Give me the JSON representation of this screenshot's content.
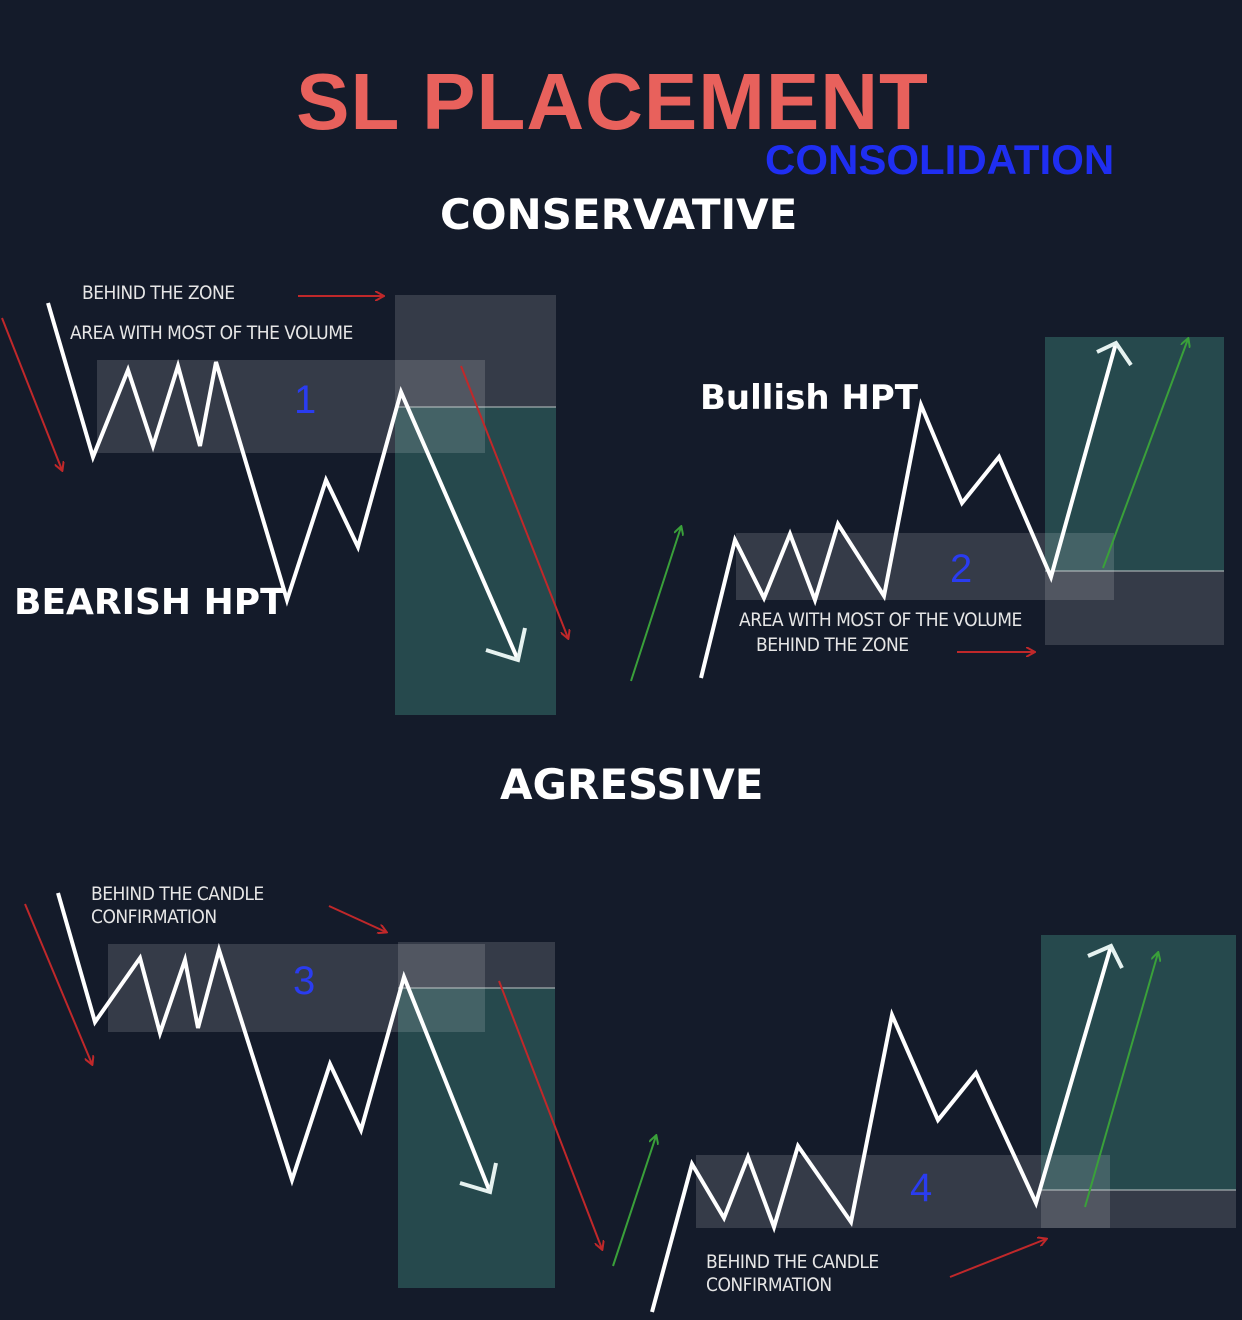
{
  "title": "SL PLACEMENT",
  "subtitle": "CONSOLIDATION",
  "sections": {
    "conservative": "CONSERVATIVE",
    "aggressive": "AGRESSIVE"
  },
  "panels": [
    {
      "number": "1",
      "label": "BEARISH HPT",
      "notes": [
        "BEHIND THE ZONE",
        "AREA WITH MOST OF THE VOLUME"
      ]
    },
    {
      "number": "2",
      "label": "Bullish HPT",
      "notes": [
        "AREA WITH MOST OF THE VOLUME",
        "BEHIND THE ZONE"
      ]
    },
    {
      "number": "3",
      "notes": [
        "BEHIND THE CANDLE",
        "CONFIRMATION"
      ]
    },
    {
      "number": "4",
      "notes": [
        "BEHIND THE CANDLE",
        "CONFIRMATION"
      ]
    }
  ],
  "colors": {
    "background": "#141b2a",
    "title": "#e8615c",
    "subtitle": "#1f2ef2",
    "zone": "#ffffff",
    "target_zone": "#2c5a5a",
    "down_arrow": "#c0282a",
    "up_arrow": "#3aa03a"
  }
}
